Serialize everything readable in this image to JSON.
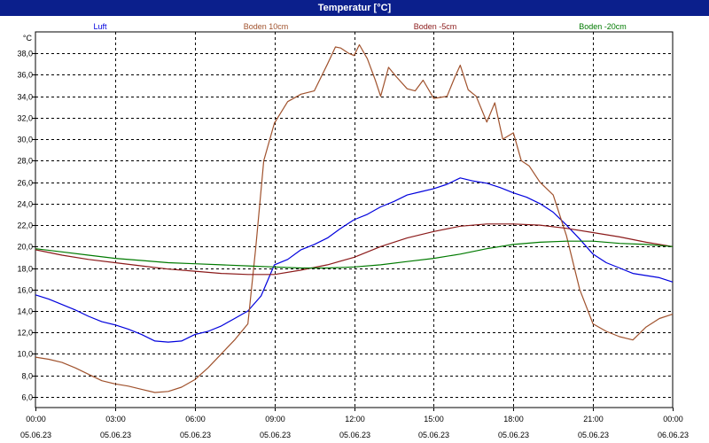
{
  "window": {
    "title": "Temperatur [°C]"
  },
  "chart_data": {
    "type": "line",
    "title": "Temperatur [°C]",
    "ylabel": "°C",
    "xlabel": "",
    "ylim": [
      5,
      40
    ],
    "y_ticks": [
      6,
      8,
      10,
      12,
      14,
      16,
      18,
      20,
      22,
      24,
      26,
      28,
      30,
      32,
      34,
      36,
      38
    ],
    "y_tick_labels": [
      "6,0",
      "8,0",
      "10,0",
      "12,0",
      "14,0",
      "16,0",
      "18,0",
      "20,0",
      "22,0",
      "24,0",
      "26,0",
      "28,0",
      "30,0",
      "32,0",
      "34,0",
      "36,0",
      "38,0"
    ],
    "x_range_hours": [
      0,
      24
    ],
    "x_ticks_hours": [
      0,
      3,
      6,
      9,
      12,
      15,
      18,
      21,
      24
    ],
    "x_tick_times": [
      "00:00",
      "03:00",
      "06:00",
      "09:00",
      "12:00",
      "15:00",
      "18:00",
      "21:00",
      "00:00"
    ],
    "x_tick_dates": [
      "05.06.23",
      "05.06.23",
      "05.06.23",
      "05.06.23",
      "05.06.23",
      "05.06.23",
      "05.06.23",
      "05.06.23",
      "06.06.23"
    ],
    "grid": true,
    "legend": "top",
    "series": [
      {
        "name": "Luft",
        "color": "#0000dd",
        "x": [
          0,
          0.5,
          1,
          1.5,
          2,
          2.5,
          3,
          3.5,
          4,
          4.5,
          5,
          5.5,
          6,
          6.5,
          7,
          7.5,
          8,
          8.5,
          9,
          9.5,
          10,
          10.5,
          11,
          11.5,
          12,
          12.5,
          13,
          13.5,
          14,
          14.5,
          15,
          15.5,
          16,
          16.5,
          17,
          17.5,
          18,
          18.5,
          19,
          19.5,
          20,
          20.5,
          21,
          21.5,
          22,
          22.5,
          23,
          23.5,
          24
        ],
        "y": [
          15.5,
          15.1,
          14.6,
          14.1,
          13.5,
          13.0,
          12.7,
          12.3,
          11.8,
          11.2,
          11.1,
          11.2,
          11.8,
          12.1,
          12.6,
          13.3,
          14.0,
          15.4,
          18.3,
          18.8,
          19.7,
          20.2,
          20.8,
          21.7,
          22.5,
          23.0,
          23.7,
          24.2,
          24.8,
          25.1,
          25.4,
          25.8,
          26.4,
          26.1,
          25.9,
          25.5,
          25.0,
          24.6,
          24.0,
          23.2,
          22.0,
          20.7,
          19.3,
          18.5,
          18.0,
          17.5,
          17.3,
          17.1,
          16.7
        ]
      },
      {
        "name": "Boden 10cm",
        "color": "#a0522d",
        "x": [
          0,
          0.5,
          1,
          1.5,
          2,
          2.5,
          3,
          3.5,
          4,
          4.5,
          5,
          5.5,
          6,
          6.5,
          7,
          7.5,
          8,
          8.3,
          8.6,
          9,
          9.5,
          10,
          10.5,
          11,
          11.3,
          11.5,
          11.8,
          12,
          12.2,
          12.5,
          12.8,
          13,
          13.3,
          13.6,
          14,
          14.3,
          14.6,
          15,
          15.5,
          15.8,
          16,
          16.3,
          16.6,
          17,
          17.3,
          17.6,
          18,
          18.3,
          18.6,
          19,
          19.5,
          20,
          20.5,
          21,
          21.5,
          22,
          22.5,
          23,
          23.5,
          24
        ],
        "y": [
          9.7,
          9.5,
          9.2,
          8.7,
          8.1,
          7.5,
          7.2,
          7.0,
          6.7,
          6.4,
          6.5,
          6.9,
          7.6,
          8.7,
          10.0,
          11.3,
          12.8,
          20.0,
          28.0,
          31.5,
          33.5,
          34.2,
          34.5,
          37.0,
          38.6,
          38.5,
          38.0,
          37.8,
          38.8,
          37.5,
          35.5,
          34.0,
          36.7,
          35.8,
          34.7,
          34.5,
          35.5,
          33.8,
          34.0,
          35.8,
          36.9,
          34.6,
          34.0,
          31.6,
          33.4,
          30.0,
          30.6,
          28.0,
          27.5,
          26.0,
          24.8,
          21.0,
          16.0,
          12.8,
          12.1,
          11.6,
          11.3,
          12.5,
          13.3,
          13.7
        ]
      },
      {
        "name": "Boden -5cm",
        "color": "#8b1a1a",
        "x": [
          0,
          1,
          2,
          3,
          4,
          5,
          6,
          7,
          8,
          9,
          10,
          11,
          12,
          13,
          14,
          15,
          16,
          17,
          18,
          19,
          20,
          21,
          22,
          23,
          24
        ],
        "y": [
          19.7,
          19.2,
          18.8,
          18.5,
          18.2,
          17.9,
          17.7,
          17.5,
          17.4,
          17.4,
          17.8,
          18.3,
          19.0,
          20.0,
          20.8,
          21.4,
          21.9,
          22.1,
          22.1,
          22.0,
          21.7,
          21.3,
          20.9,
          20.4,
          20.0
        ]
      },
      {
        "name": "Boden -20cm",
        "color": "#007a00",
        "x": [
          0,
          1,
          2,
          3,
          4,
          5,
          6,
          7,
          8,
          9,
          10,
          11,
          12,
          13,
          14,
          15,
          16,
          17,
          18,
          19,
          20,
          21,
          22,
          23,
          24
        ],
        "y": [
          19.8,
          19.5,
          19.2,
          18.9,
          18.7,
          18.5,
          18.4,
          18.3,
          18.2,
          18.1,
          18.0,
          18.0,
          18.1,
          18.3,
          18.6,
          18.9,
          19.3,
          19.8,
          20.2,
          20.4,
          20.5,
          20.5,
          20.3,
          20.2,
          20.0
        ]
      }
    ]
  }
}
